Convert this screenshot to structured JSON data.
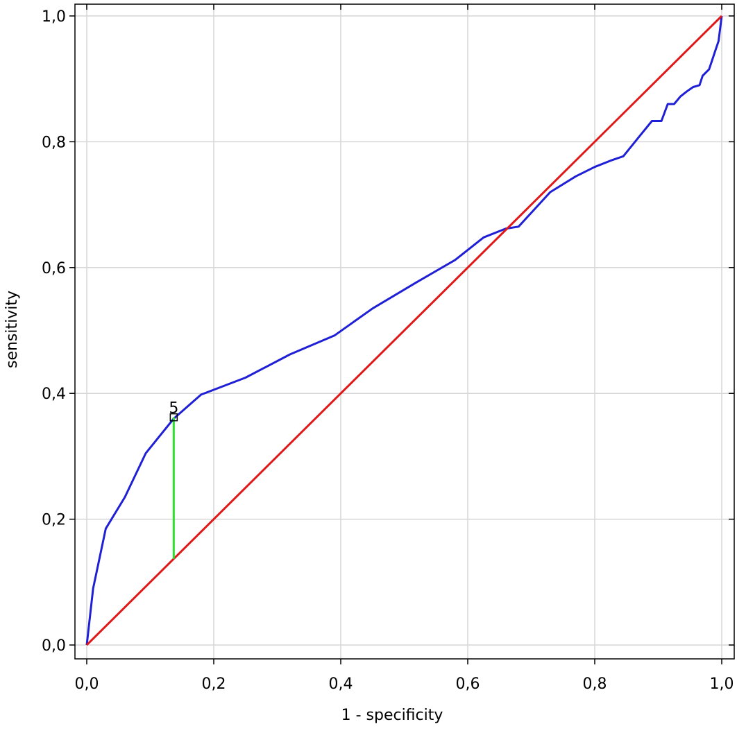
{
  "chart_data": {
    "type": "line",
    "title": "",
    "xlabel": "1 - specificity",
    "ylabel": "sensitivity",
    "xlim": [
      0,
      1
    ],
    "ylim": [
      0,
      1
    ],
    "grid": true,
    "x_ticks": [
      {
        "value": 0.0,
        "label": "0,0"
      },
      {
        "value": 0.2,
        "label": "0,2"
      },
      {
        "value": 0.4,
        "label": "0,4"
      },
      {
        "value": 0.6,
        "label": "0,6"
      },
      {
        "value": 0.8,
        "label": "0,8"
      },
      {
        "value": 1.0,
        "label": "1,0"
      }
    ],
    "y_ticks": [
      {
        "value": 0.0,
        "label": "0,0"
      },
      {
        "value": 0.2,
        "label": "0,2"
      },
      {
        "value": 0.4,
        "label": "0,4"
      },
      {
        "value": 0.6,
        "label": "0,6"
      },
      {
        "value": 0.8,
        "label": "0,8"
      },
      {
        "value": 1.0,
        "label": "1,0"
      }
    ],
    "series": [
      {
        "color": "#1f1fd6",
        "x": [
          0.0,
          0.01,
          0.03,
          0.06,
          0.093,
          0.137,
          0.18,
          0.25,
          0.32,
          0.39,
          0.45,
          0.52,
          0.58,
          0.625,
          0.66,
          0.68,
          0.73,
          0.77,
          0.8,
          0.825,
          0.845,
          0.87,
          0.89,
          0.905,
          0.915,
          0.925,
          0.935,
          0.945,
          0.955,
          0.965,
          0.97,
          0.975,
          0.98,
          0.985,
          0.99,
          0.995,
          1.0
        ],
        "y": [
          0.0,
          0.09,
          0.185,
          0.235,
          0.305,
          0.36,
          0.398,
          0.425,
          0.462,
          0.492,
          0.535,
          0.577,
          0.612,
          0.648,
          0.662,
          0.665,
          0.72,
          0.745,
          0.76,
          0.77,
          0.777,
          0.808,
          0.833,
          0.833,
          0.86,
          0.86,
          0.872,
          0.88,
          0.887,
          0.89,
          0.905,
          0.91,
          0.915,
          0.93,
          0.945,
          0.96,
          1.0
        ]
      },
      {
        "color": "#e01818",
        "x": [
          0.0,
          1.0
        ],
        "y": [
          0.0,
          1.0
        ]
      }
    ],
    "cutoff": {
      "label": "5",
      "x": 0.137,
      "y_top": 0.362,
      "y_bottom": 0.137,
      "color": "#2ee02e"
    }
  }
}
